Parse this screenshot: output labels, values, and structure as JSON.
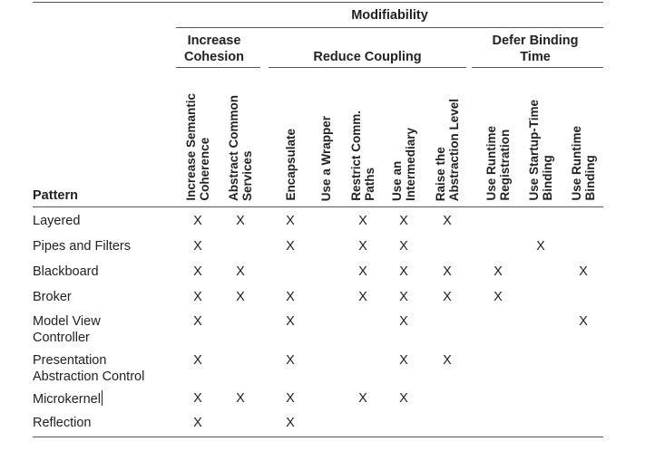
{
  "title": "Modifiability",
  "groups": {
    "cohesion": "Increase Cohesion",
    "coupling": "Reduce Coupling",
    "binding": "Defer Binding Time"
  },
  "pattern_header": "Pattern",
  "columns": [
    "Increase Semantic Coherence",
    "Abstract Common Services",
    "Encapsulate",
    "Use a Wrapper",
    "Restrict Comm. Paths",
    "Use an Intermediary",
    "Raise the Abstraction Level",
    "Use Runtime Registration",
    "Use Startup-Time Binding",
    "Use Runtime Binding"
  ],
  "mark": "X",
  "rows": [
    {
      "pattern": "Layered",
      "marks": [
        1,
        1,
        1,
        0,
        1,
        1,
        1,
        0,
        0,
        0
      ]
    },
    {
      "pattern": "Pipes and Filters",
      "marks": [
        1,
        0,
        1,
        0,
        1,
        1,
        0,
        0,
        1,
        0
      ]
    },
    {
      "pattern": "Blackboard",
      "marks": [
        1,
        1,
        0,
        0,
        1,
        1,
        1,
        1,
        0,
        1
      ]
    },
    {
      "pattern": "Broker",
      "marks": [
        1,
        1,
        1,
        0,
        1,
        1,
        1,
        1,
        0,
        0
      ]
    },
    {
      "pattern": "Model View Controller",
      "marks": [
        1,
        0,
        1,
        0,
        0,
        1,
        0,
        0,
        0,
        1
      ]
    },
    {
      "pattern": "Presentation Abstraction Control",
      "marks": [
        1,
        0,
        1,
        0,
        0,
        1,
        1,
        0,
        0,
        0
      ]
    },
    {
      "pattern": "Microkernel",
      "marks": [
        1,
        1,
        1,
        0,
        1,
        1,
        0,
        0,
        0,
        0
      ]
    },
    {
      "pattern": "Reflection",
      "marks": [
        1,
        0,
        1,
        0,
        0,
        0,
        0,
        0,
        0,
        0
      ]
    }
  ]
}
